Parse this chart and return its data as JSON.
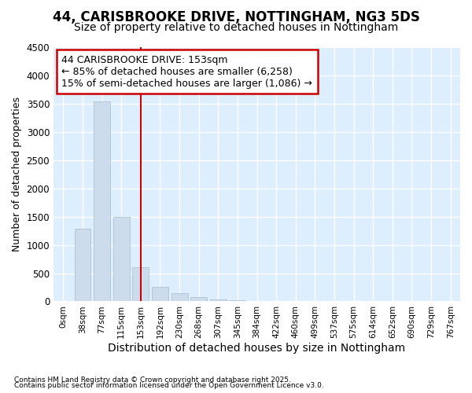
{
  "title1": "44, CARISBROOKE DRIVE, NOTTINGHAM, NG3 5DS",
  "title2": "Size of property relative to detached houses in Nottingham",
  "xlabel": "Distribution of detached houses by size in Nottingham",
  "ylabel": "Number of detached properties",
  "bar_color": "#ccdcec",
  "bar_edge_color": "#aabbcc",
  "line_color": "#cc0000",
  "categories": [
    "0sqm",
    "38sqm",
    "77sqm",
    "115sqm",
    "153sqm",
    "192sqm",
    "230sqm",
    "268sqm",
    "307sqm",
    "345sqm",
    "384sqm",
    "422sqm",
    "460sqm",
    "499sqm",
    "537sqm",
    "575sqm",
    "614sqm",
    "652sqm",
    "690sqm",
    "729sqm",
    "767sqm"
  ],
  "values": [
    0,
    1290,
    3540,
    1500,
    600,
    250,
    145,
    80,
    40,
    15,
    5,
    2,
    1,
    0,
    0,
    0,
    0,
    0,
    0,
    0,
    0
  ],
  "vline_x": 4,
  "ylim": [
    0,
    4500
  ],
  "yticks": [
    0,
    500,
    1000,
    1500,
    2000,
    2500,
    3000,
    3500,
    4000,
    4500
  ],
  "annotation_title": "44 CARISBROOKE DRIVE: 153sqm",
  "annotation_line1": "← 85% of detached houses are smaller (6,258)",
  "annotation_line2": "15% of semi-detached houses are larger (1,086) →",
  "annotation_box_color": "#cc0000",
  "annotation_fill": "#ffffff",
  "footer1": "Contains HM Land Registry data © Crown copyright and database right 2025.",
  "footer2": "Contains public sector information licensed under the Open Government Licence v3.0.",
  "bg_color": "#ddeeff",
  "grid_color": "#ffffff",
  "fig_bg": "#ffffff",
  "title1_fontsize": 12,
  "title2_fontsize": 10,
  "xlabel_fontsize": 10,
  "ylabel_fontsize": 9,
  "annotation_fontsize": 9
}
